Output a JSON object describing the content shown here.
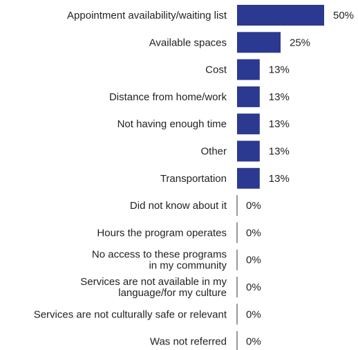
{
  "chart_data": {
    "type": "bar",
    "orientation": "horizontal",
    "title": "",
    "xlabel": "",
    "ylabel": "",
    "xlim": [
      0,
      50
    ],
    "grid": false,
    "legend": "none",
    "bar_color": "#2b3990",
    "axis_color": "#333333",
    "categories": [
      [
        "Appointment availability/waiting list"
      ],
      [
        "Available spaces"
      ],
      [
        "Cost"
      ],
      [
        "Distance from home/work"
      ],
      [
        "Not having enough time"
      ],
      [
        "Other"
      ],
      [
        "Transportation"
      ],
      [
        "Did not know about it"
      ],
      [
        "Hours the program operates"
      ],
      [
        "No access to these programs",
        "in my community"
      ],
      [
        "Services are not available in my",
        "language/for my culture"
      ],
      [
        "Services are not culturally safe or relevant"
      ],
      [
        "Was not referred"
      ]
    ],
    "values": [
      50,
      25,
      13,
      13,
      13,
      13,
      13,
      0,
      0,
      0,
      0,
      0,
      0
    ],
    "value_labels": [
      "50%",
      "25%",
      "13%",
      "13%",
      "13%",
      "13%",
      "13%",
      "0%",
      "0%",
      "0%",
      "0%",
      "0%",
      "0%"
    ]
  }
}
